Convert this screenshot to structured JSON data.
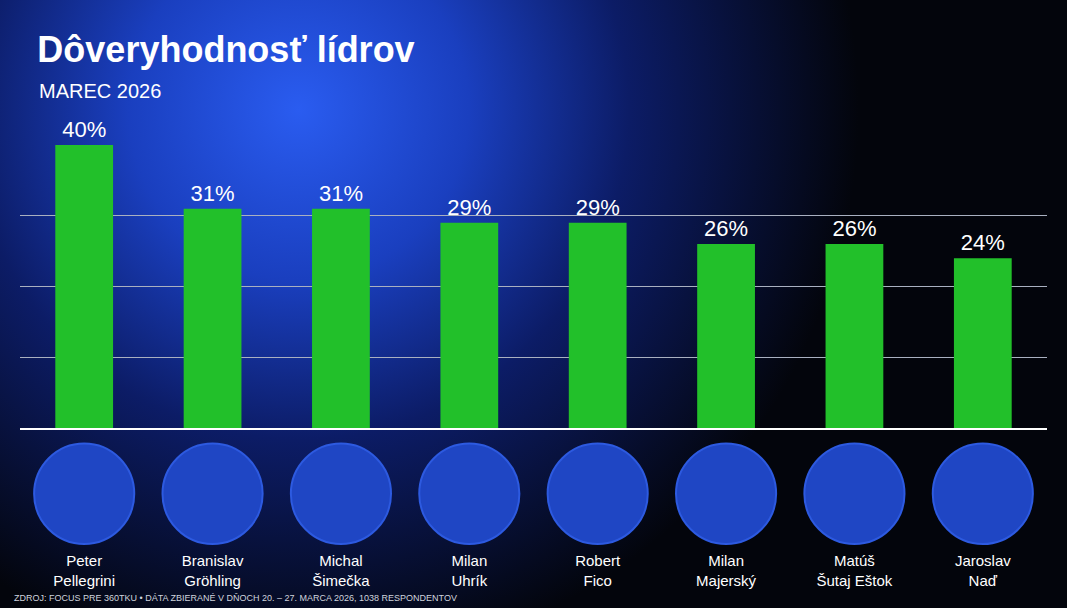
{
  "chart_data": {
    "type": "bar",
    "title": "Dôveryhodnosť lídrov",
    "subtitle": "MAREC 2026",
    "categories": [
      "Peter Pellegrini",
      "Branislav Gröhling",
      "Michal Šimečka",
      "Milan Uhrík",
      "Robert Fico",
      "Milan Majerský",
      "Matúš Šutaj Eštok",
      "Jaroslav Naď"
    ],
    "values": [
      40,
      31,
      31,
      29,
      29,
      26,
      26,
      24
    ],
    "value_labels": [
      "40%",
      "31%",
      "31%",
      "29%",
      "29%",
      "26%",
      "26%",
      "24%"
    ],
    "color": "#22c02a",
    "ylim": [
      0,
      40
    ],
    "yticks": [
      0,
      10,
      20,
      30,
      40
    ],
    "grid": true,
    "data_labels": true,
    "tick_labels": "x",
    "annotations": [
      "ZDROJ: FOCUS PRE 360TKU • DÁTA ZBIERANÉ V DŇOCH 20. – 27. MARCA 2026, 1038 RESPONDENTOV"
    ]
  }
}
